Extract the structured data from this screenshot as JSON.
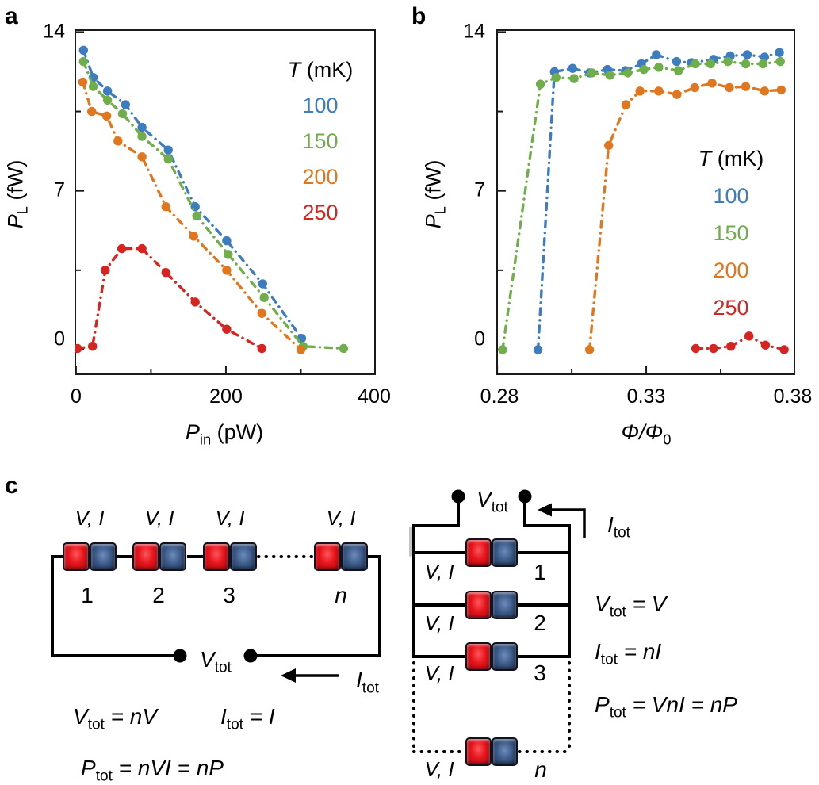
{
  "panels": {
    "a": "a",
    "b": "b",
    "c": "c"
  },
  "chart_data": [
    {
      "panel": "a",
      "type": "scatter",
      "line_style": "dash-dot",
      "xlabel": {
        "main": "P",
        "sub": "in",
        "unit": " (pW)"
      },
      "ylabel": {
        "main": "P",
        "sub": "L",
        "unit": " (fW)"
      },
      "xlim": [
        -2,
        400
      ],
      "ylim": [
        -1.12,
        14.12
      ],
      "xticks": {
        "major": [
          0,
          200,
          400
        ],
        "minor": [
          100,
          300
        ],
        "labels": [
          "0",
          "200",
          "400"
        ]
      },
      "yticks": {
        "major": [
          0,
          7,
          14
        ],
        "minor": [
          3.5,
          10.5
        ],
        "labels": [
          "0",
          "7",
          "14"
        ]
      },
      "grid": false,
      "legend": {
        "title_var": "T",
        "title_rest": " (mK)",
        "position": "upper right"
      },
      "series": [
        {
          "name": "100",
          "temperature_mK": 100,
          "color": "#3d7dbf",
          "points": [
            [
              10,
              13.2
            ],
            [
              23,
              12.0
            ],
            [
              42,
              11.4
            ],
            [
              66,
              10.8
            ],
            [
              88,
              9.8
            ],
            [
              123,
              8.8
            ],
            [
              159,
              6.3
            ],
            [
              201,
              4.8
            ],
            [
              249,
              2.9
            ],
            [
              301,
              0.5
            ]
          ]
        },
        {
          "name": "150",
          "temperature_mK": 150,
          "color": "#6fae4b",
          "points": [
            [
              10,
              12.7
            ],
            [
              23,
              11.6
            ],
            [
              42,
              11.0
            ],
            [
              62,
              10.4
            ],
            [
              88,
              9.4
            ],
            [
              123,
              8.4
            ],
            [
              161,
              5.9
            ],
            [
              203,
              4.2
            ],
            [
              251,
              2.3
            ],
            [
              303,
              0.15
            ],
            [
              357,
              0.05
            ]
          ]
        },
        {
          "name": "200",
          "temperature_mK": 200,
          "color": "#e0771f",
          "points": [
            [
              9,
              11.8
            ],
            [
              21,
              10.5
            ],
            [
              41,
              10.3
            ],
            [
              56,
              9.2
            ],
            [
              88,
              8.5
            ],
            [
              120,
              6.3
            ],
            [
              157,
              5.0
            ],
            [
              201,
              3.5
            ],
            [
              248,
              1.6
            ],
            [
              300,
              0.0
            ]
          ]
        },
        {
          "name": "250",
          "temperature_mK": 250,
          "color": "#d62420",
          "points": [
            [
              2,
              0.05
            ],
            [
              22,
              0.15
            ],
            [
              39,
              3.5
            ],
            [
              61,
              4.45
            ],
            [
              88,
              4.45
            ],
            [
              120,
              3.4
            ],
            [
              159,
              2.1
            ],
            [
              201,
              0.9
            ],
            [
              248,
              0.05
            ]
          ]
        }
      ]
    },
    {
      "panel": "b",
      "type": "scatter",
      "line_style": "dash-dot",
      "xlabel": {
        "main": "Φ/Φ",
        "sub": "0",
        "unit": ""
      },
      "ylabel": {
        "main": "P",
        "sub": "L",
        "unit": " (fW)"
      },
      "xlim": [
        0.2797,
        0.38
      ],
      "ylim": [
        -1.12,
        14.12
      ],
      "xticks": {
        "major": [
          0.28,
          0.33,
          0.38
        ],
        "minor": [
          0.305,
          0.355
        ],
        "labels": [
          "0.28",
          "0.33",
          "0.38"
        ]
      },
      "yticks": {
        "major": [
          0,
          7,
          14
        ],
        "minor": [
          3.5,
          10.5
        ],
        "labels": [
          "0",
          "7",
          "14"
        ]
      },
      "grid": false,
      "legend": {
        "title_var": "T",
        "title_rest": " (mK)",
        "position": "lower right"
      },
      "series": [
        {
          "name": "100",
          "temperature_mK": 100,
          "color": "#3d7dbf",
          "points": [
            [
              0.2937,
              0.0
            ],
            [
              0.2992,
              12.25
            ],
            [
              0.3053,
              12.4
            ],
            [
              0.311,
              12.2
            ],
            [
              0.317,
              12.35
            ],
            [
              0.323,
              12.3
            ],
            [
              0.3284,
              12.6
            ],
            [
              0.3334,
              13.0
            ],
            [
              0.3402,
              12.7
            ],
            [
              0.3452,
              12.65
            ],
            [
              0.3526,
              12.8
            ],
            [
              0.3582,
              12.95
            ],
            [
              0.3639,
              13.0
            ],
            [
              0.3697,
              12.9
            ],
            [
              0.3747,
              13.1
            ]
          ]
        },
        {
          "name": "150",
          "temperature_mK": 150,
          "color": "#6fae4b",
          "points": [
            [
              0.2818,
              0.0
            ],
            [
              0.2945,
              11.7
            ],
            [
              0.2997,
              12.0
            ],
            [
              0.3058,
              11.95
            ],
            [
              0.3118,
              12.2
            ],
            [
              0.3178,
              12.1
            ],
            [
              0.3238,
              12.2
            ],
            [
              0.3292,
              12.35
            ],
            [
              0.3342,
              12.45
            ],
            [
              0.3408,
              12.3
            ],
            [
              0.3465,
              12.6
            ],
            [
              0.3516,
              12.6
            ],
            [
              0.3574,
              12.7
            ],
            [
              0.3634,
              12.6
            ],
            [
              0.3692,
              12.6
            ],
            [
              0.375,
              12.7
            ]
          ]
        },
        {
          "name": "200",
          "temperature_mK": 200,
          "color": "#e0771f",
          "points": [
            [
              0.311,
              0.0
            ],
            [
              0.3174,
              9.0
            ],
            [
              0.3232,
              10.8
            ],
            [
              0.3279,
              11.4
            ],
            [
              0.3342,
              11.4
            ],
            [
              0.3403,
              11.25
            ],
            [
              0.3463,
              11.55
            ],
            [
              0.3521,
              11.75
            ],
            [
              0.3579,
              11.55
            ],
            [
              0.3634,
              11.6
            ],
            [
              0.3697,
              11.4
            ],
            [
              0.3753,
              11.45
            ]
          ]
        },
        {
          "name": "250",
          "temperature_mK": 250,
          "color": "#d62420",
          "points": [
            [
              0.3466,
              0.05
            ],
            [
              0.3526,
              0.05
            ],
            [
              0.3584,
              0.15
            ],
            [
              0.3645,
              0.6
            ],
            [
              0.37,
              0.2
            ],
            [
              0.3763,
              0.0
            ]
          ]
        }
      ]
    }
  ],
  "diagram": {
    "series_circuit": {
      "device_labels": [
        "V, I",
        "V, I",
        "V, I",
        "V, I"
      ],
      "device_numbers": [
        "1",
        "2",
        "3",
        "n"
      ],
      "vtot": {
        "var": "V",
        "sub": "tot"
      },
      "itot": {
        "var": "I",
        "sub": "tot"
      },
      "equations": [
        {
          "lhs": "V",
          "sub": "tot",
          "rhs": " = nV"
        },
        {
          "lhs": "I",
          "sub": "tot",
          "rhs": " = I"
        },
        {
          "lhs": "P",
          "sub": "tot",
          "rhs": " = nVI = nP"
        }
      ]
    },
    "parallel_circuit": {
      "device_labels": [
        "V, I",
        "V, I",
        "V, I",
        "V, I"
      ],
      "device_numbers": [
        "1",
        "2",
        "3",
        "n"
      ],
      "vtot": {
        "var": "V",
        "sub": "tot"
      },
      "itot": {
        "var": "I",
        "sub": "tot"
      },
      "equations": [
        {
          "lhs": "V",
          "sub": "tot",
          "rhs": " = V"
        },
        {
          "lhs": "I",
          "sub": "tot",
          "rhs": " = nI"
        },
        {
          "lhs": "P",
          "sub": "tot",
          "rhs": " = VnI = nP"
        }
      ]
    },
    "device_colors": {
      "red": "#e8141c",
      "blue": "#3a5784",
      "wire": "#000000"
    }
  }
}
